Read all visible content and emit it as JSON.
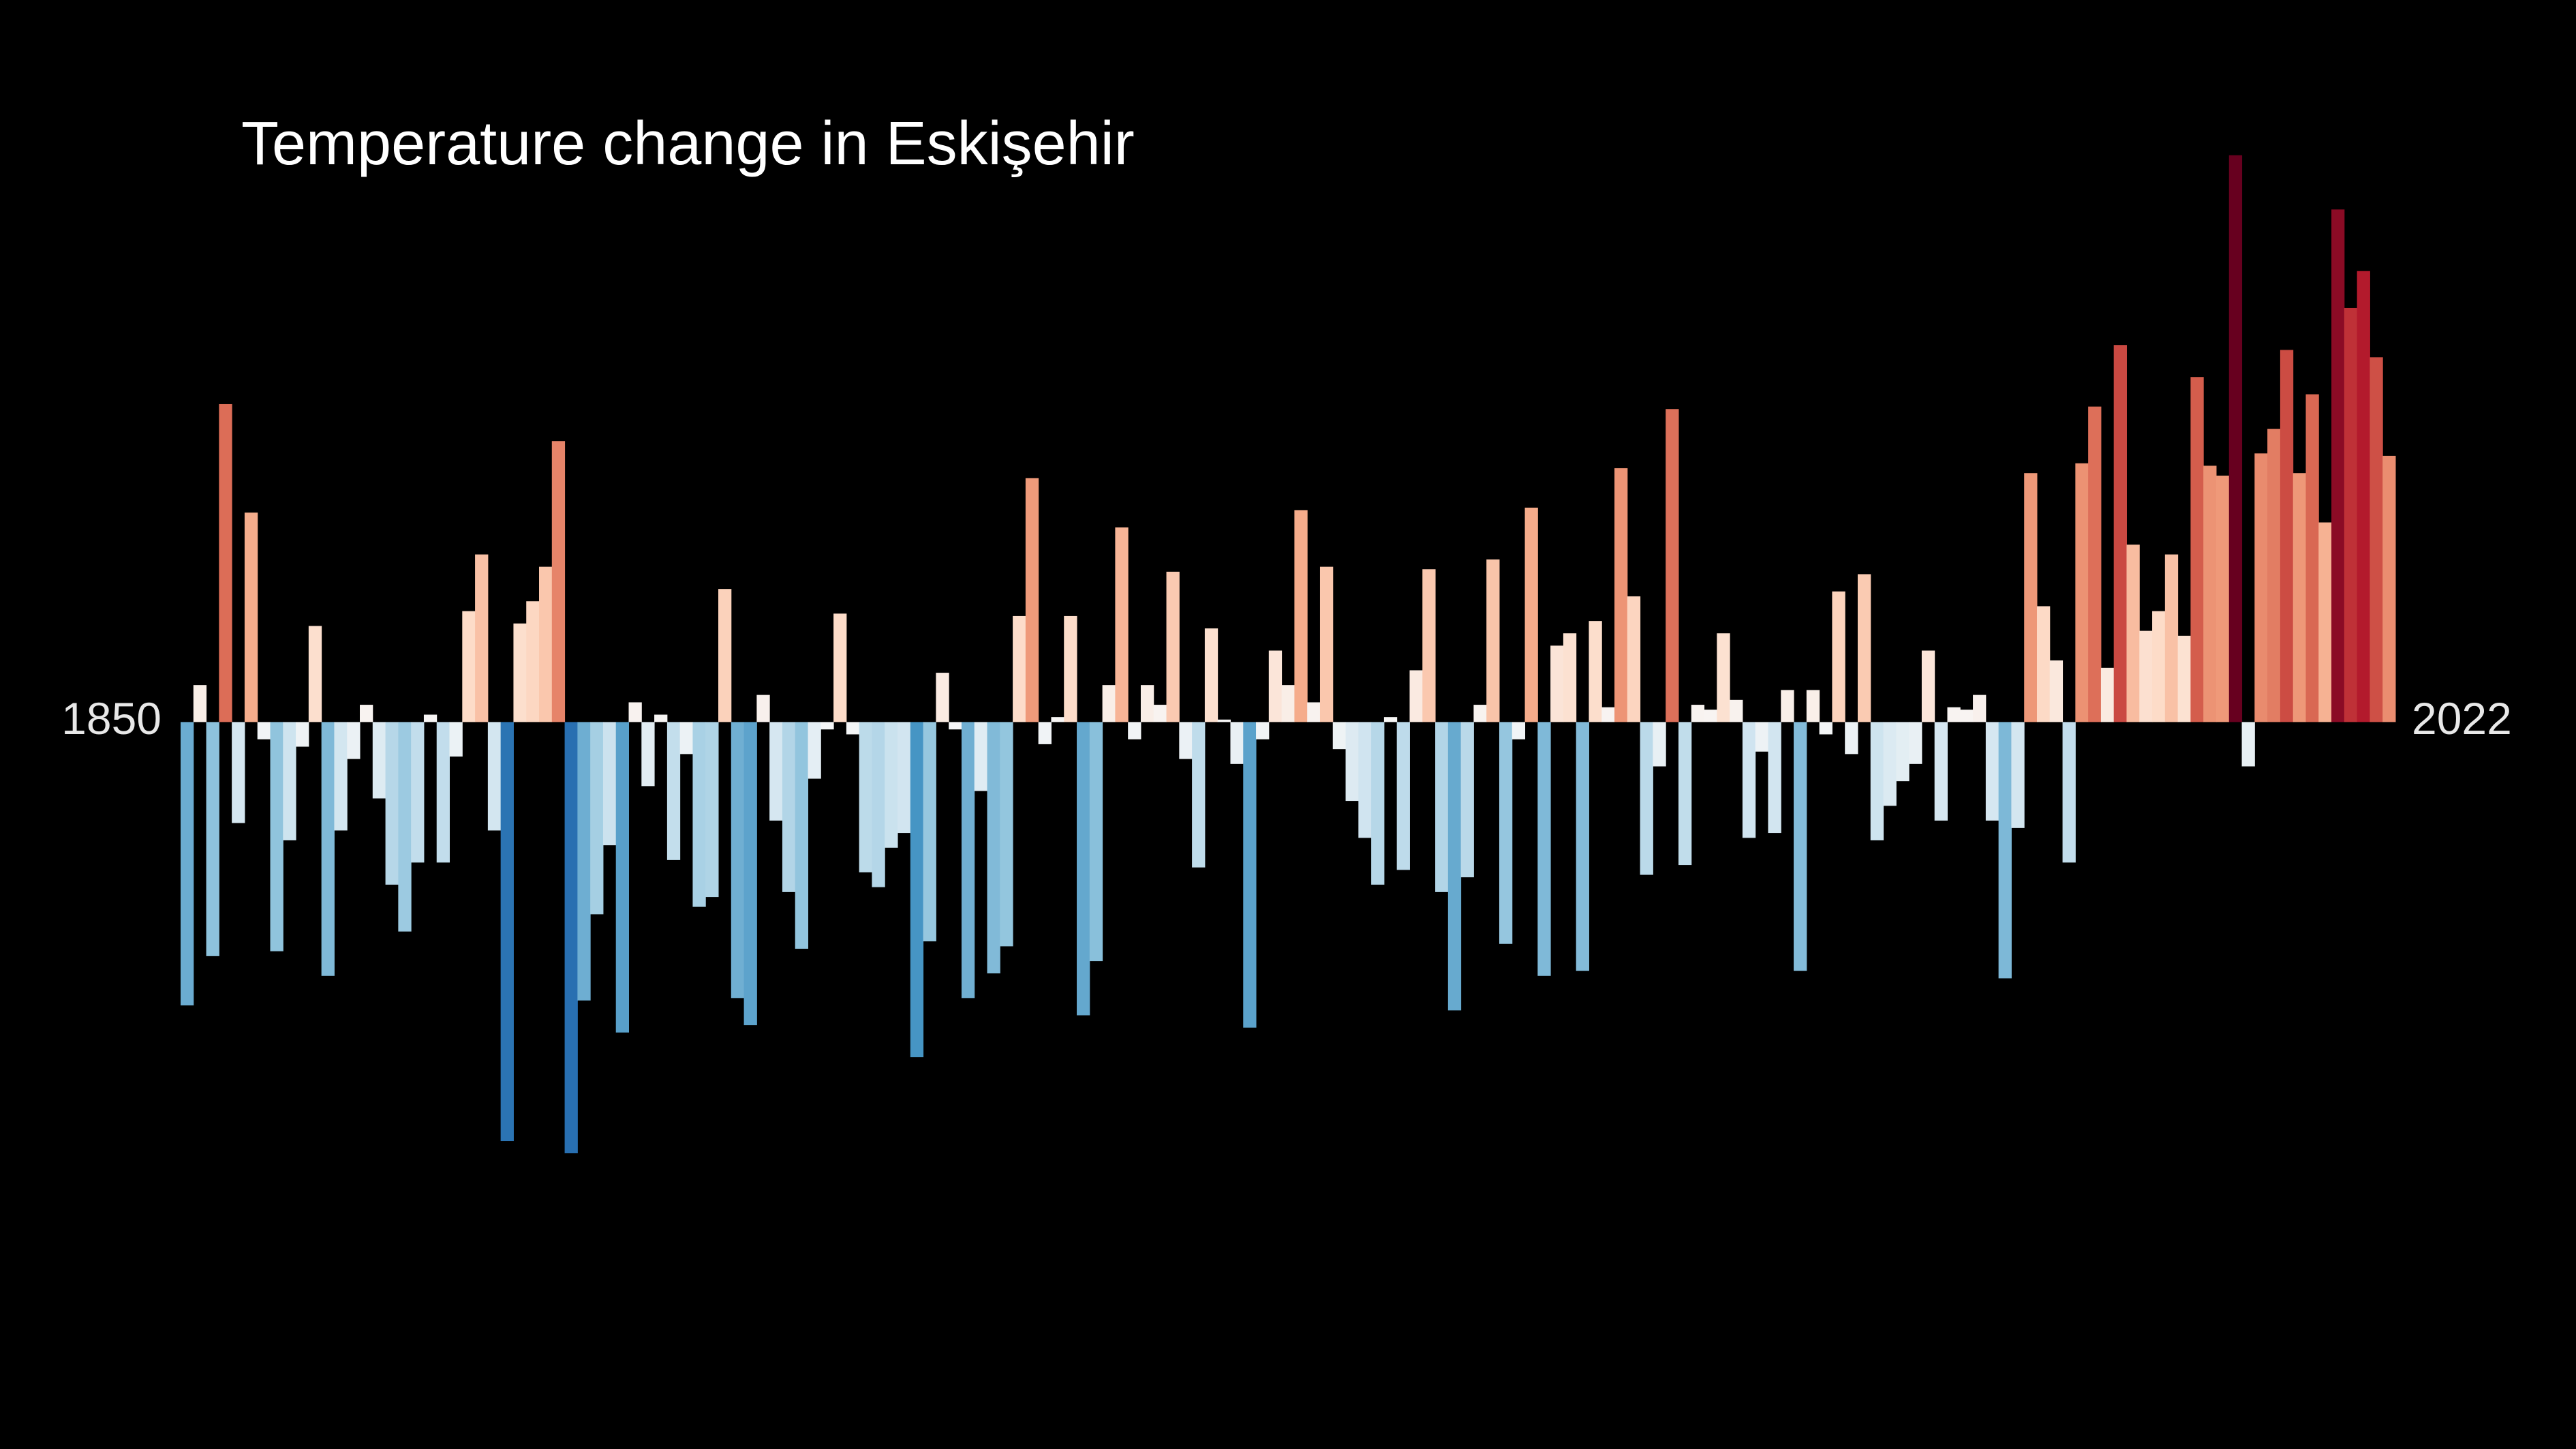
{
  "chart_data": {
    "type": "bar",
    "title": "Temperature change in Eskişehir",
    "colormap": "RdBu_r",
    "categories": [
      "1850",
      null,
      null,
      null,
      null,
      null,
      null,
      null,
      null,
      null,
      null,
      null,
      null,
      null,
      null,
      null,
      null,
      null,
      null,
      null,
      null,
      null,
      null,
      null,
      null,
      null,
      null,
      null,
      null,
      null,
      null,
      null,
      null,
      null,
      null,
      null,
      null,
      null,
      null,
      null,
      null,
      null,
      null,
      null,
      null,
      null,
      null,
      null,
      null,
      null,
      null,
      null,
      null,
      null,
      null,
      null,
      null,
      null,
      null,
      null,
      null,
      null,
      null,
      null,
      null,
      null,
      null,
      null,
      null,
      null,
      null,
      null,
      null,
      null,
      null,
      null,
      null,
      null,
      null,
      null,
      null,
      null,
      null,
      null,
      null,
      null,
      null,
      null,
      null,
      null,
      null,
      null,
      null,
      null,
      null,
      null,
      null,
      null,
      null,
      null,
      null,
      null,
      null,
      null,
      null,
      null,
      null,
      null,
      null,
      null,
      null,
      null,
      null,
      null,
      null,
      null,
      null,
      null,
      null,
      null,
      null,
      null,
      null,
      null,
      null,
      null,
      null,
      null,
      null,
      null,
      null,
      null,
      null,
      null,
      null,
      null,
      null,
      null,
      null,
      null,
      null,
      null,
      null,
      null,
      null,
      null,
      null,
      null,
      null,
      null,
      null,
      null,
      null,
      null,
      null,
      null,
      null,
      null,
      null,
      null,
      null,
      null,
      null,
      null,
      null,
      null,
      null,
      null,
      null,
      null,
      null,
      null,
      "2022"
    ],
    "values": [
      -1.15,
      0.15,
      -0.95,
      1.29,
      -0.41,
      0.85,
      -0.07,
      -0.93,
      -0.48,
      -0.1,
      0.39,
      -1.03,
      -0.44,
      -0.15,
      0.07,
      -0.31,
      -0.66,
      -0.85,
      -0.57,
      0.03,
      -0.57,
      -0.14,
      0.45,
      0.68,
      -0.44,
      -1.7,
      0.4,
      0.49,
      0.63,
      1.14,
      -1.75,
      -1.13,
      -0.78,
      -0.5,
      -1.26,
      0.08,
      -0.26,
      0.03,
      -0.56,
      -0.13,
      -0.75,
      -0.71,
      0.54,
      -1.12,
      -1.23,
      0.11,
      -0.4,
      -0.69,
      -0.92,
      -0.23,
      -0.03,
      0.44,
      -0.05,
      -0.61,
      -0.67,
      -0.51,
      -0.45,
      -1.36,
      -0.89,
      0.2,
      -0.03,
      -1.12,
      -0.28,
      -1.02,
      -0.91,
      0.43,
      0.99,
      -0.09,
      0.02,
      0.43,
      -1.19,
      -0.97,
      0.15,
      0.79,
      -0.07,
      0.15,
      0.07,
      0.61,
      -0.15,
      -0.59,
      0.38,
      0.01,
      -0.17,
      -1.24,
      -0.07,
      0.29,
      0.15,
      0.86,
      0.08,
      0.63,
      -0.11,
      -0.32,
      -0.47,
      -0.66,
      0.02,
      -0.6,
      0.21,
      0.62,
      -0.69,
      -1.17,
      -0.63,
      0.07,
      0.66,
      -0.9,
      -0.07,
      0.87,
      -1.03,
      0.31,
      0.36,
      -1.01,
      0.41,
      0.06,
      1.03,
      0.51,
      -0.62,
      -0.18,
      1.27,
      -0.58,
      0.07,
      0.05,
      0.36,
      0.09,
      -0.47,
      -0.12,
      -0.45,
      0.13,
      -1.01,
      0.13,
      -0.05,
      0.53,
      -0.13,
      0.6,
      -0.48,
      -0.34,
      -0.24,
      -0.17,
      0.29,
      -0.4,
      0.06,
      0.05,
      0.11,
      -0.4,
      -1.04,
      -0.43,
      1.01,
      0.47,
      0.25,
      -0.57,
      1.05,
      1.28,
      0.22,
      1.53,
      0.72,
      0.37,
      0.45,
      0.68,
      0.35,
      1.4,
      1.04,
      1.0,
      2.3,
      -0.18,
      1.09,
      1.19,
      1.51,
      1.01,
      1.33,
      0.81,
      2.08,
      1.68,
      1.83,
      1.48,
      1.08
    ],
    "ylim": [
      -2.95,
      2.93
    ]
  }
}
